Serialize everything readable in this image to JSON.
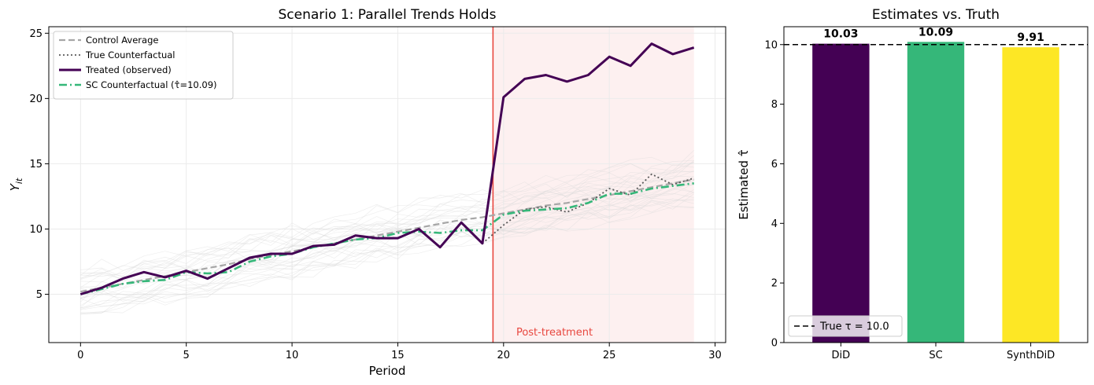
{
  "chart_data": [
    {
      "type": "line",
      "title": "Scenario 1: Parallel Trends Holds",
      "xlabel": "Period",
      "ylabel": "Y_it",
      "xlim": [
        -1.5,
        30.5
      ],
      "ylim": [
        1.3,
        25.5
      ],
      "xticks": [
        0,
        5,
        10,
        15,
        20,
        25,
        30
      ],
      "yticks": [
        5,
        10,
        15,
        20,
        25
      ],
      "grid": true,
      "legend_position": "top-left",
      "treatment_period": 19.5,
      "post_treatment_label": "Post-treatment",
      "post_shade_range": [
        19.5,
        29
      ],
      "colors": {
        "control": "#a6a6a6",
        "counterfactual": "#595959",
        "treated": "#440154",
        "sc": "#35b779",
        "treatment_line": "#e8473f",
        "post_shade": "#fdf0f0",
        "background_units": "#d9d9d9"
      },
      "x": [
        0,
        1,
        2,
        3,
        4,
        5,
        6,
        7,
        8,
        9,
        10,
        11,
        12,
        13,
        14,
        15,
        16,
        17,
        18,
        19,
        20,
        21,
        22,
        23,
        24,
        25,
        26,
        27,
        28,
        29
      ],
      "series": [
        {
          "name": "Control Average",
          "style": "dashed",
          "values": [
            5.2,
            5.5,
            5.8,
            6.1,
            6.4,
            6.7,
            7.0,
            7.3,
            7.7,
            8.0,
            8.3,
            8.6,
            8.9,
            9.2,
            9.5,
            9.8,
            10.1,
            10.4,
            10.7,
            10.9,
            11.2,
            11.5,
            11.8,
            12.0,
            12.3,
            12.6,
            12.9,
            13.2,
            13.5,
            13.8
          ]
        },
        {
          "name": "True Counterfactual",
          "style": "dotted",
          "values": [
            null,
            null,
            null,
            null,
            null,
            null,
            null,
            null,
            null,
            null,
            null,
            null,
            null,
            null,
            null,
            null,
            null,
            null,
            null,
            8.9,
            10.3,
            11.5,
            11.7,
            11.3,
            12.0,
            13.1,
            12.6,
            14.2,
            13.4,
            13.9
          ]
        },
        {
          "name": "Treated (observed)",
          "style": "solid",
          "values": [
            5.0,
            5.5,
            6.2,
            6.7,
            6.3,
            6.8,
            6.2,
            7.0,
            7.8,
            8.1,
            8.1,
            8.7,
            8.8,
            9.5,
            9.3,
            9.3,
            10.0,
            8.6,
            10.5,
            8.9,
            20.1,
            21.5,
            21.8,
            21.3,
            21.8,
            23.2,
            22.5,
            24.2,
            23.4,
            23.9
          ]
        },
        {
          "name": "SC Counterfactual (τ̂=10.09)",
          "style": "dashdot",
          "values": [
            5.0,
            5.4,
            5.8,
            6.0,
            6.1,
            6.7,
            6.6,
            6.7,
            7.5,
            7.9,
            8.1,
            8.6,
            8.9,
            9.2,
            9.3,
            9.7,
            9.8,
            9.7,
            9.9,
            9.9,
            11.1,
            11.4,
            11.5,
            11.6,
            12.0,
            12.7,
            12.7,
            13.1,
            13.3,
            13.5
          ]
        }
      ]
    },
    {
      "type": "bar",
      "title": "Estimates vs. Truth",
      "xlabel": "",
      "ylabel": "Estimated τ̂",
      "categories": [
        "DiD",
        "SC",
        "SynthDiD"
      ],
      "values": [
        10.03,
        10.09,
        9.91
      ],
      "value_labels": [
        "10.03",
        "10.09",
        "9.91"
      ],
      "colors": [
        "#440154",
        "#35b779",
        "#fde725"
      ],
      "ylim": [
        0,
        10.6
      ],
      "yticks": [
        0,
        2,
        4,
        6,
        8,
        10
      ],
      "reference_line": {
        "value": 10.0,
        "label": "True τ = 10.0",
        "style": "dashed",
        "color": "#000000"
      },
      "legend_position": "bottom-left"
    }
  ]
}
